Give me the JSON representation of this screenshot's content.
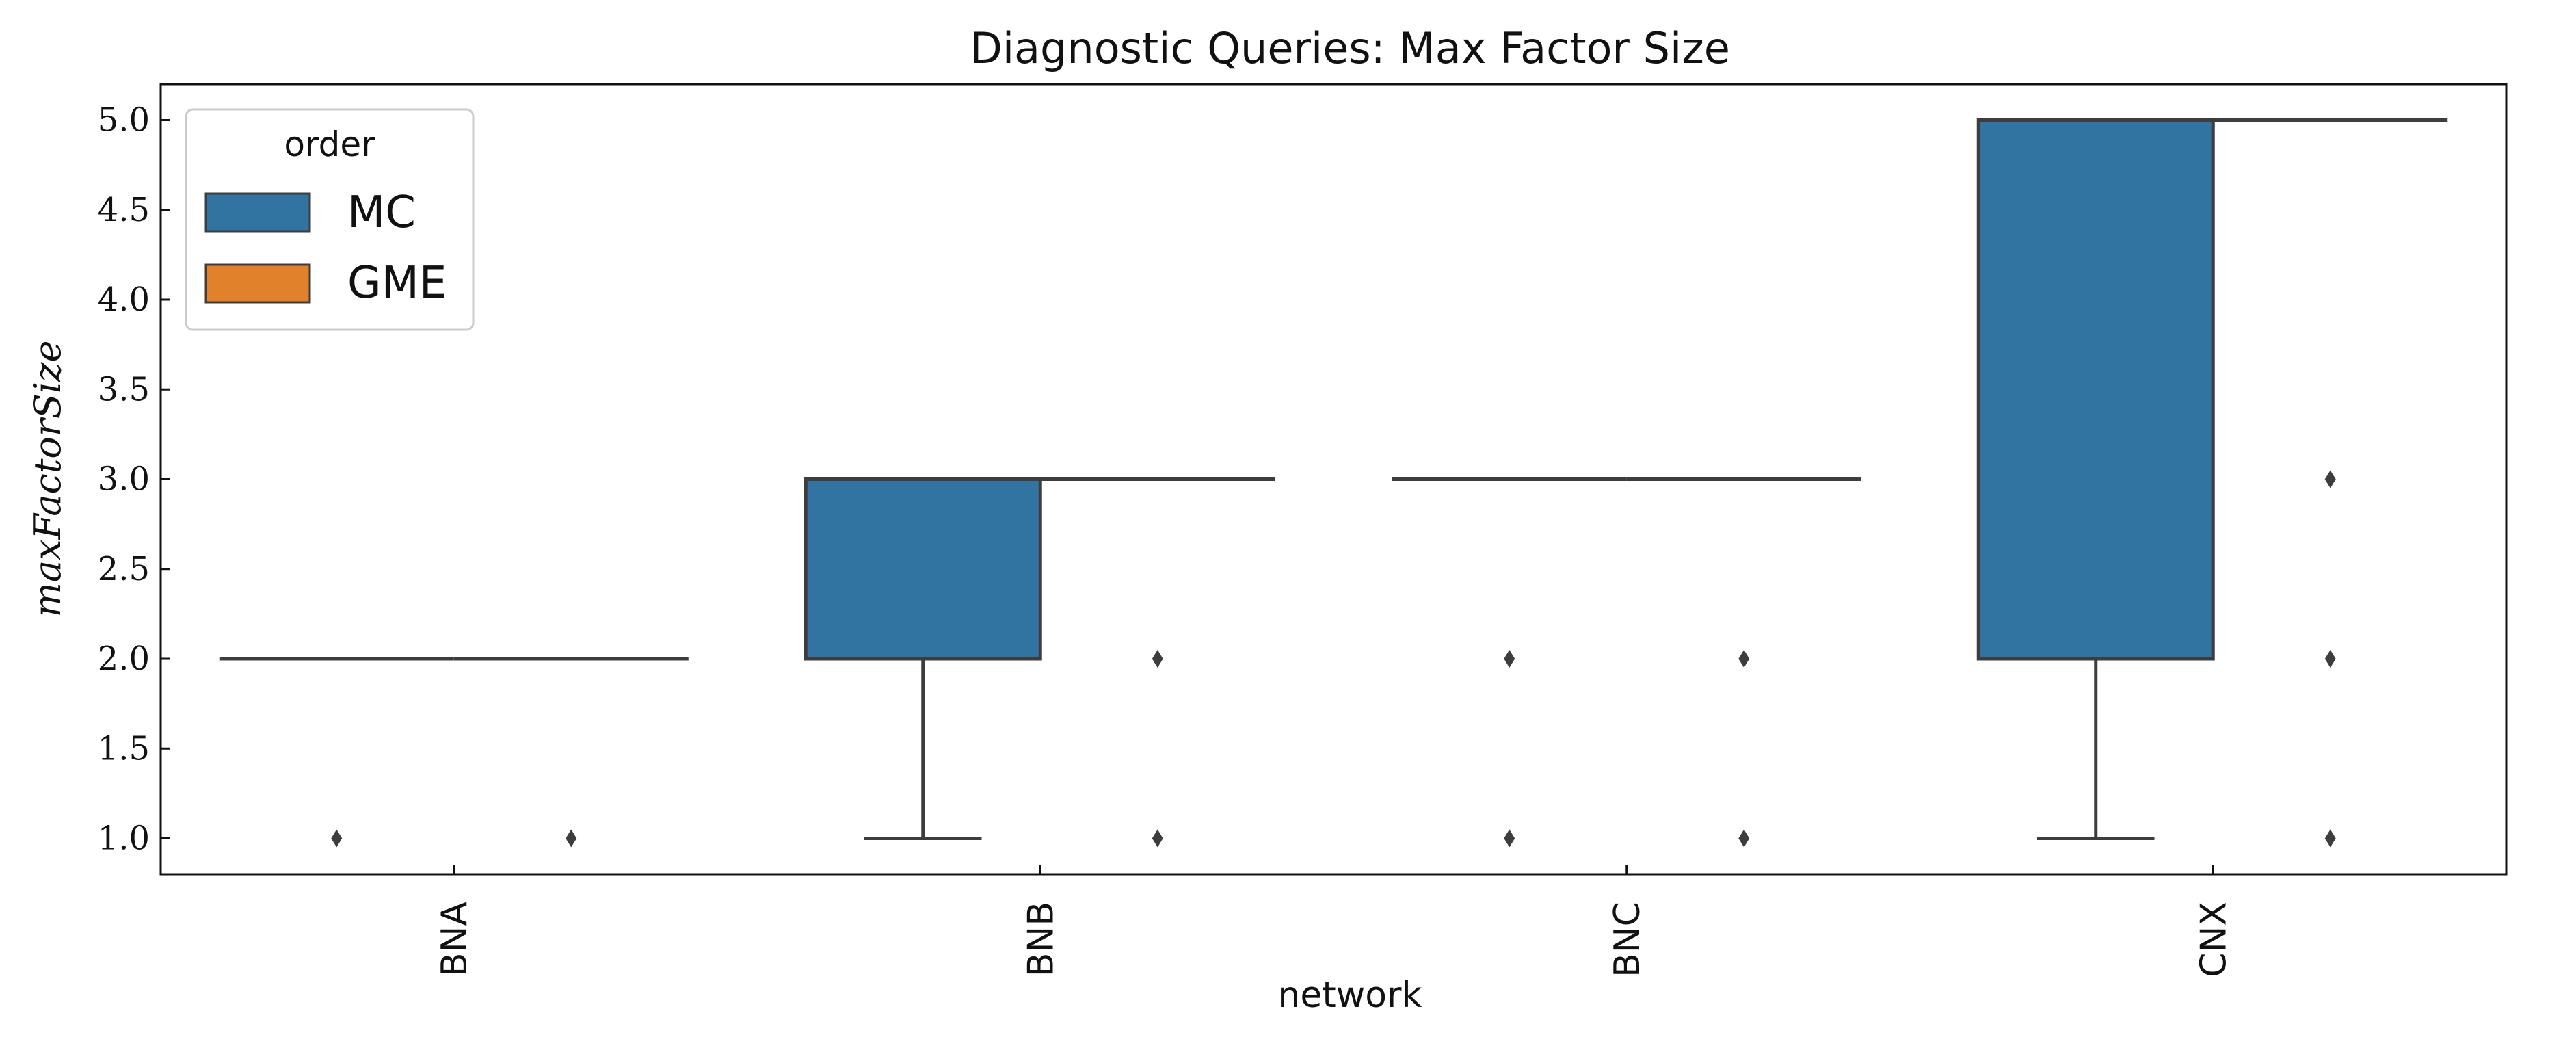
{
  "chart_data": {
    "type": "box",
    "title": "Diagnostic Queries: Max Factor Size",
    "xlabel": "network",
    "ylabel": "maxFactorSize",
    "categories": [
      "BNA",
      "BNB",
      "BNC",
      "CNX"
    ],
    "ylim": [
      0.8,
      5.2
    ],
    "yticks": [
      "1.0",
      "1.5",
      "2.0",
      "2.5",
      "3.0",
      "3.5",
      "4.0",
      "4.5",
      "5.0"
    ],
    "legend": {
      "title": "order",
      "position": "upper-left",
      "entries": [
        "MC",
        "GME"
      ]
    },
    "colors": {
      "MC": "#3274a1",
      "GME": "#e1812c",
      "line": "#3d3d3d"
    },
    "series": [
      {
        "name": "MC",
        "boxes": [
          {
            "q1": 2,
            "median": 2,
            "q3": 2,
            "whisker_low": 2,
            "whisker_high": 2,
            "outliers": [
              1
            ]
          },
          {
            "q1": 2,
            "median": 3,
            "q3": 3,
            "whisker_low": 1,
            "whisker_high": 3,
            "outliers": []
          },
          {
            "q1": 3,
            "median": 3,
            "q3": 3,
            "whisker_low": 3,
            "whisker_high": 3,
            "outliers": [
              1,
              2
            ]
          },
          {
            "q1": 2,
            "median": 5,
            "q3": 5,
            "whisker_low": 1,
            "whisker_high": 5,
            "outliers": []
          }
        ]
      },
      {
        "name": "GME",
        "boxes": [
          {
            "q1": 2,
            "median": 2,
            "q3": 2,
            "whisker_low": 2,
            "whisker_high": 2,
            "outliers": [
              1
            ]
          },
          {
            "q1": 3,
            "median": 3,
            "q3": 3,
            "whisker_low": 3,
            "whisker_high": 3,
            "outliers": [
              1,
              2
            ]
          },
          {
            "q1": 3,
            "median": 3,
            "q3": 3,
            "whisker_low": 3,
            "whisker_high": 3,
            "outliers": [
              1,
              2
            ]
          },
          {
            "q1": 5,
            "median": 5,
            "q3": 5,
            "whisker_low": 5,
            "whisker_high": 5,
            "outliers": [
              1,
              2,
              3
            ]
          }
        ]
      }
    ]
  }
}
